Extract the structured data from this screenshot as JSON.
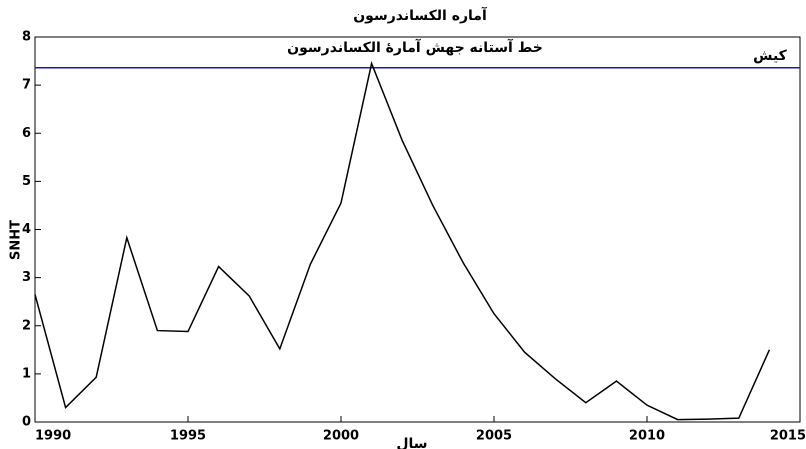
{
  "chart_data": {
    "type": "line",
    "title": "آماره الکساندرسون",
    "annotation": "کیش",
    "xlabel": "سال",
    "ylabel": "SNHT",
    "x": [
      1990,
      1991,
      1992,
      1993,
      1994,
      1995,
      1996,
      1997,
      1998,
      1999,
      2000,
      2001,
      2002,
      2003,
      2004,
      2005,
      2006,
      2007,
      2008,
      2009,
      2010,
      2011,
      2012,
      2013,
      2014
    ],
    "series": [
      {
        "color": "#000000",
        "values": [
          2.65,
          0.3,
          0.93,
          3.83,
          1.9,
          1.88,
          3.23,
          2.62,
          1.52,
          3.28,
          4.55,
          7.45,
          5.85,
          4.5,
          3.3,
          2.25,
          1.45,
          0.9,
          0.4,
          0.85,
          0.35,
          0.05,
          0.06,
          0.08,
          1.5
        ]
      }
    ],
    "threshold": {
      "value": 7.36,
      "label": "خط آستانه جهش آمارۀ الکساندرسون",
      "color": "#1a1aa6"
    },
    "xlim": [
      1990,
      2015
    ],
    "xticks": [
      1990,
      1995,
      2000,
      2005,
      2010,
      2015
    ],
    "ylim": [
      0,
      8
    ],
    "yticks": [
      0,
      1,
      2,
      3,
      4,
      5,
      6,
      7,
      8
    ]
  }
}
